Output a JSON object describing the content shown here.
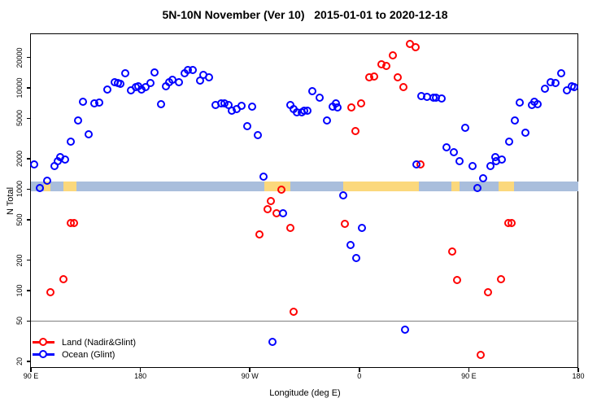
{
  "title": "5N-10N November (Ver 10)   2015-01-01 to 2020-12-18",
  "axes": {
    "x_label": "Longitude (deg E)",
    "y_label": "N Total"
  },
  "chart_data": {
    "type": "scatter",
    "title": "5N-10N November (Ver 10)  2015-01-01 to 2020-12-18",
    "xlabel": "Longitude (deg E)",
    "ylabel": "N Total",
    "x_axis_note": "longitude axis wraps eastward: 90E to 180 to 90W to 0 to 90E to 180; stored x = degrees east along axis from 90E (0-450)",
    "x_span_deg": [
      0,
      450
    ],
    "x_ticks_deg": [
      0,
      90,
      180,
      270,
      360,
      450
    ],
    "x_tick_labels": [
      "90 E",
      "180",
      "90 W",
      "0",
      "90 E",
      "180"
    ],
    "y_scale": "log",
    "y_range": [
      18,
      33900
    ],
    "y_ticks": [
      20,
      50,
      100,
      200,
      500,
      1000,
      2000,
      5000,
      10000,
      20000
    ],
    "grid": "off",
    "legend_position": "bottom-left",
    "reference_line_N": 50,
    "reference_line_color": "#7F7F7F",
    "coastline_band": {
      "N_span": [
        950,
        1190
      ],
      "ocean_color": "#A9BEDC",
      "land_color": "#FBD87C",
      "land_segments_deg": [
        [
          10.7,
          16
        ],
        [
          26.7,
          37.4
        ],
        [
          191.9,
          213.3
        ],
        [
          256.8,
          318.9
        ],
        [
          345.7,
          352.4
        ],
        [
          384.5,
          397.2
        ]
      ]
    },
    "series": [
      {
        "name": "Land (Nadir&Glint)",
        "color": "#FF0000",
        "marker": "open-circle",
        "points": [
          [
            16.7,
            96
          ],
          [
            27.4,
            129
          ],
          [
            32.8,
            456
          ],
          [
            36.1,
            456
          ],
          [
            187.9,
            358
          ],
          [
            194.6,
            624
          ],
          [
            197.9,
            752
          ],
          [
            202.6,
            569
          ],
          [
            206.6,
            990
          ],
          [
            213.3,
            415
          ],
          [
            216.6,
            61
          ],
          [
            258.1,
            448
          ],
          [
            264.1,
            6410
          ],
          [
            267.4,
            3750
          ],
          [
            272.1,
            7030
          ],
          [
            278.8,
            12500
          ],
          [
            282.8,
            12900
          ],
          [
            288.2,
            16800
          ],
          [
            292.8,
            16200
          ],
          [
            298.2,
            20900
          ],
          [
            302.2,
            12700
          ],
          [
            306.9,
            10000
          ],
          [
            311.6,
            26700
          ],
          [
            316.9,
            25200
          ],
          [
            320.9,
            1730
          ],
          [
            347,
            239
          ],
          [
            351,
            127
          ],
          [
            370.4,
            23
          ],
          [
            375.8,
            95
          ],
          [
            387.1,
            129
          ],
          [
            392.5,
            456
          ],
          [
            395.8,
            456
          ]
        ]
      },
      {
        "name": "Ocean (Glint)",
        "color": "#0000FF",
        "marker": "open-circle",
        "points": [
          [
            3.3,
            1730
          ],
          [
            8,
            1010
          ],
          [
            13.4,
            1210
          ],
          [
            19.4,
            1690
          ],
          [
            22.7,
            1860
          ],
          [
            24.1,
            2040
          ],
          [
            28.1,
            1960
          ],
          [
            33.4,
            2950
          ],
          [
            38.8,
            4770
          ],
          [
            42.8,
            7300
          ],
          [
            48.1,
            3480
          ],
          [
            52.8,
            7030
          ],
          [
            56.2,
            7160
          ],
          [
            63.5,
            9460
          ],
          [
            69.5,
            11200
          ],
          [
            72.2,
            11000
          ],
          [
            74.2,
            10800
          ],
          [
            78.2,
            13700
          ],
          [
            82.9,
            9290
          ],
          [
            86.3,
            10000
          ],
          [
            88.3,
            10200
          ],
          [
            91.6,
            9460
          ],
          [
            94.3,
            10000
          ],
          [
            98.3,
            11000
          ],
          [
            102.3,
            14000
          ],
          [
            107,
            6900
          ],
          [
            111,
            10200
          ],
          [
            113.7,
            11200
          ],
          [
            117,
            12000
          ],
          [
            121.7,
            11200
          ],
          [
            126.4,
            13700
          ],
          [
            129.7,
            14800
          ],
          [
            133.1,
            14800
          ],
          [
            139.1,
            11800
          ],
          [
            142.4,
            13200
          ],
          [
            147.1,
            12500
          ],
          [
            152.4,
            6780
          ],
          [
            156.5,
            7030
          ],
          [
            159.8,
            7030
          ],
          [
            162.5,
            6780
          ],
          [
            165.8,
            5850
          ],
          [
            169.2,
            6070
          ],
          [
            173.2,
            6650
          ],
          [
            177.9,
            4190
          ],
          [
            182.5,
            6530
          ],
          [
            187.2,
            3360
          ],
          [
            191.9,
            1330
          ],
          [
            199.2,
            31
          ],
          [
            207.3,
            569
          ],
          [
            213.3,
            6780
          ],
          [
            216.6,
            6070
          ],
          [
            219.3,
            5640
          ],
          [
            222.7,
            5740
          ],
          [
            225.3,
            5850
          ],
          [
            228,
            5850
          ],
          [
            232,
            9120
          ],
          [
            238,
            7870
          ],
          [
            243.4,
            4770
          ],
          [
            248.1,
            6530
          ],
          [
            251.4,
            7030
          ],
          [
            252.1,
            6300
          ],
          [
            257.4,
            855
          ],
          [
            262.8,
            277
          ],
          [
            268.1,
            206
          ],
          [
            272.8,
            408
          ],
          [
            307.6,
            41
          ],
          [
            317.6,
            1730
          ],
          [
            321.6,
            8160
          ],
          [
            326.3,
            8020
          ],
          [
            331,
            7870
          ],
          [
            333.6,
            7870
          ],
          [
            337.7,
            7730
          ],
          [
            341.7,
            2590
          ],
          [
            347.7,
            2280
          ],
          [
            353,
            1860
          ],
          [
            357.7,
            4040
          ],
          [
            363.1,
            1690
          ],
          [
            367.7,
            1010
          ],
          [
            371.8,
            1260
          ],
          [
            377.8,
            1690
          ],
          [
            381.8,
            2040
          ],
          [
            382.5,
            1860
          ],
          [
            387.2,
            1960
          ],
          [
            393.2,
            2950
          ],
          [
            397.9,
            4770
          ],
          [
            401.9,
            7160
          ],
          [
            407.2,
            3550
          ],
          [
            411.9,
            6780
          ],
          [
            413.9,
            7300
          ],
          [
            416.6,
            6900
          ],
          [
            422.6,
            9640
          ],
          [
            427.9,
            11200
          ],
          [
            431.3,
            11000
          ],
          [
            436.6,
            13700
          ],
          [
            441.3,
            9290
          ],
          [
            445.3,
            10200
          ],
          [
            447.3,
            10000
          ]
        ]
      }
    ]
  }
}
